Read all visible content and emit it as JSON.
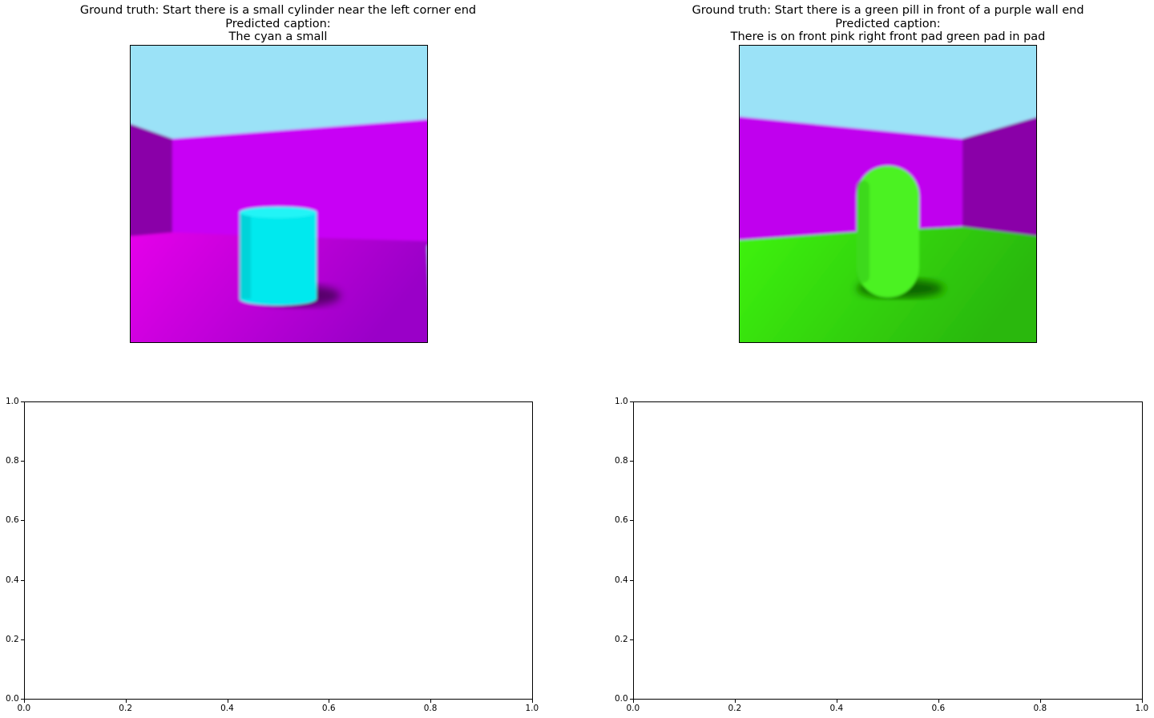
{
  "panels": [
    {
      "title_lines": [
        "Ground truth: Start there is a small cylinder near the left corner end",
        "Predicted caption:",
        "The cyan a small"
      ],
      "scene": {
        "sky": "#9be2f7",
        "wall": "#c800f5",
        "side_wall": "#8a00a8",
        "floor": "#e600ea",
        "floor_dark": "#9a00c8",
        "object": "cylinder",
        "object_color": "#00e9ee",
        "object_shade": "#00c4cc"
      }
    },
    {
      "title_lines": [
        "Ground truth: Start there is a green pill in front of a purple wall end",
        "Predicted caption:",
        "There is on front pink right front pad green pad in pad"
      ],
      "scene": {
        "sky": "#9be2f7",
        "wall": "#c000ee",
        "side_wall": "#8a00a8",
        "floor": "#3ef40a",
        "floor_dark": "#2ab807",
        "object": "pill",
        "object_color": "#4cf224",
        "object_shade": "#32c41a"
      }
    }
  ],
  "chart_data": [
    {
      "type": "scatter",
      "xlim": [
        0,
        1
      ],
      "ylim": [
        0,
        1
      ],
      "x_ticks": [
        "0.0",
        "0.2",
        "0.4",
        "0.6",
        "0.8",
        "1.0"
      ],
      "y_ticks": [
        "0.0",
        "0.2",
        "0.4",
        "0.6",
        "0.8",
        "1.0"
      ],
      "series": []
    },
    {
      "type": "scatter",
      "xlim": [
        0,
        1
      ],
      "ylim": [
        0,
        1
      ],
      "x_ticks": [
        "0.0",
        "0.2",
        "0.4",
        "0.6",
        "0.8",
        "1.0"
      ],
      "y_ticks": [
        "0.0",
        "0.2",
        "0.4",
        "0.6",
        "0.8",
        "1.0"
      ],
      "series": []
    }
  ]
}
